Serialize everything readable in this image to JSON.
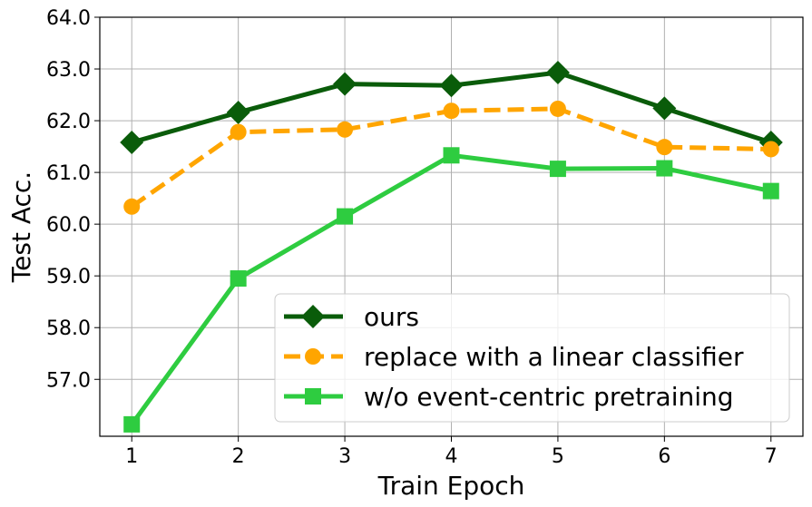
{
  "chart_data": {
    "type": "line",
    "xlabel": "Train Epoch",
    "ylabel": "Test Acc.",
    "x": [
      1,
      2,
      3,
      4,
      5,
      6,
      7
    ],
    "xlim": [
      0.7,
      7.3
    ],
    "ylim": [
      55.9,
      64.0
    ],
    "xticks": [
      "1",
      "2",
      "3",
      "4",
      "5",
      "6",
      "7"
    ],
    "yticks": [
      "57.0",
      "58.0",
      "59.0",
      "60.0",
      "61.0",
      "62.0",
      "63.0",
      "64.0"
    ],
    "grid": true,
    "legend_position": "lower-right",
    "series": [
      {
        "name": "ours",
        "values": [
          61.58,
          62.16,
          62.71,
          62.68,
          62.93,
          62.24,
          61.58
        ],
        "color": "#0a5c0a",
        "marker": "diamond",
        "linestyle": "solid"
      },
      {
        "name": "replace with a linear classifier",
        "values": [
          60.34,
          61.78,
          61.83,
          62.19,
          62.23,
          61.49,
          61.45
        ],
        "color": "#ffa500",
        "marker": "circle",
        "linestyle": "dashed"
      },
      {
        "name": "w/o event-centric pretraining",
        "values": [
          56.13,
          58.95,
          60.15,
          61.33,
          61.07,
          61.08,
          60.64
        ],
        "color": "#2ecc40",
        "marker": "square",
        "linestyle": "solid"
      }
    ]
  }
}
